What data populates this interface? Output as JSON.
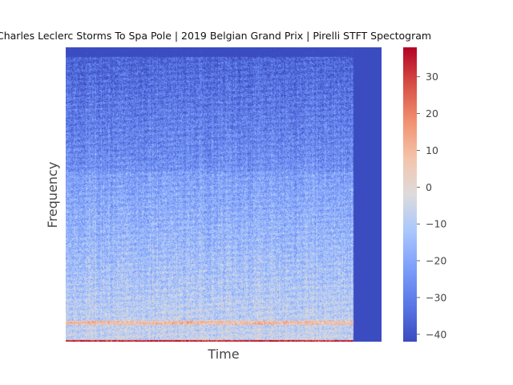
{
  "chart_data": {
    "type": "heatmap",
    "title": "Charles Leclerc Storms To Spa Pole | 2019 Belgian Grand Prix | Pirelli STFT Spectogram",
    "xlabel": "Time",
    "ylabel": "Frequency",
    "x_ticks_visible": false,
    "y_ticks_visible": false,
    "grid": false,
    "colormap": "coolwarm",
    "colorbar": {
      "range": [
        -42,
        38
      ],
      "ticks": [
        30,
        20,
        10,
        0,
        -10,
        -20,
        -30,
        -40
      ],
      "tick_labels": [
        "30",
        "20",
        "10",
        "0",
        "−10",
        "−20",
        "−30",
        "−40"
      ]
    },
    "colors": {
      "low": "#3b4cc0",
      "mid": "#dddcdc",
      "high": "#b40426",
      "padding_region": "#3b4cc0"
    }
  }
}
